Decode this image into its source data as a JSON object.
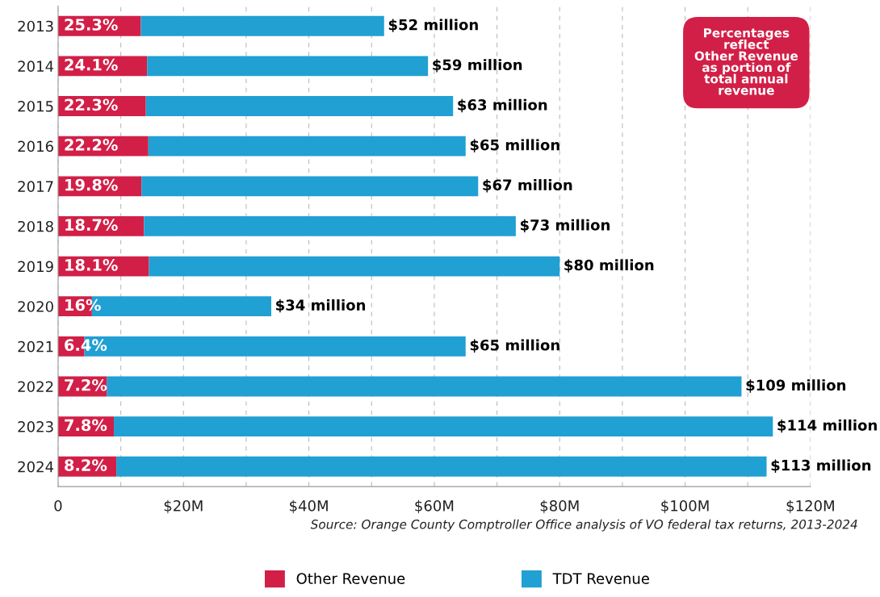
{
  "chart_data": {
    "type": "bar",
    "orientation": "horizontal",
    "stacked": true,
    "categories": [
      "2013",
      "2014",
      "2015",
      "2016",
      "2017",
      "2018",
      "2019",
      "2020",
      "2021",
      "2022",
      "2023",
      "2024"
    ],
    "series": [
      {
        "name": "Other Revenue",
        "color": "#d21f47",
        "values": [
          13.2,
          14.2,
          14.0,
          14.4,
          13.3,
          13.7,
          14.5,
          5.4,
          4.2,
          7.8,
          8.9,
          9.3
        ]
      },
      {
        "name": "TDT Revenue",
        "color": "#20a0d3",
        "values": [
          38.8,
          44.8,
          49.0,
          50.6,
          53.7,
          59.3,
          65.5,
          28.6,
          60.8,
          101.2,
          105.1,
          103.7
        ]
      }
    ],
    "totals": [
      "$52 million",
      "$59 million",
      "$63 million",
      "$65 million",
      "$67 million",
      "$73 million",
      "$80 million",
      "$34 million",
      "$65 million",
      "$109 million",
      "$114 million",
      "$113 million"
    ],
    "xlim": [
      0,
      120
    ],
    "xticks": [
      {
        "value": 0,
        "label": "0"
      },
      {
        "value": 10,
        "label": null
      },
      {
        "value": 20,
        "label": "$20M"
      },
      {
        "value": 30,
        "label": null
      },
      {
        "value": 40,
        "label": "$40M"
      },
      {
        "value": 50,
        "label": null
      },
      {
        "value": 60,
        "label": "$60M"
      },
      {
        "value": 70,
        "label": null
      },
      {
        "value": 80,
        "label": "$80M"
      },
      {
        "value": 90,
        "label": null
      },
      {
        "value": 100,
        "label": "$100M"
      },
      {
        "value": 110,
        "label": null
      },
      {
        "value": 120,
        "label": "$120M"
      }
    ],
    "grid": "x",
    "legend": "bottom",
    "annotations": [
      "Percentages\nreflect\nOther Revenue\nas portion of\ntotal annual\nrevenue",
      "Source: Orange County Comptroller Office analysis of VO federal tax returns, 2013-2024",
      "25.3%",
      "24.1%",
      "22.3%",
      "22.2%",
      "19.8%",
      "18.7%",
      "18.1%",
      "16%",
      "6.4%",
      "7.2%",
      "7.8%",
      "8.2%"
    ]
  }
}
